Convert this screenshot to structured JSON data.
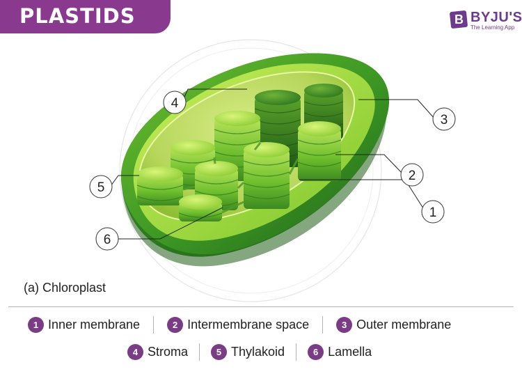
{
  "title": "PLASTIDS",
  "logo": {
    "mark": "B",
    "name": "BYJU'S",
    "tagline": "The Learning App"
  },
  "caption": "(a) Chloroplast",
  "callouts": [
    "1",
    "2",
    "3",
    "4",
    "5",
    "6"
  ],
  "legend": [
    {
      "num": "1",
      "label": "Inner membrane"
    },
    {
      "num": "2",
      "label": "Intermembrane space"
    },
    {
      "num": "3",
      "label": "Outer membrane"
    },
    {
      "num": "4",
      "label": "Stroma"
    },
    {
      "num": "5",
      "label": "Thylakoid"
    },
    {
      "num": "6",
      "label": "Lamella"
    }
  ],
  "colors": {
    "banner": "#8a3a8e",
    "badge": "#7b3c86",
    "dark_green": "#2e7d1f",
    "light_green": "#9fd935"
  }
}
